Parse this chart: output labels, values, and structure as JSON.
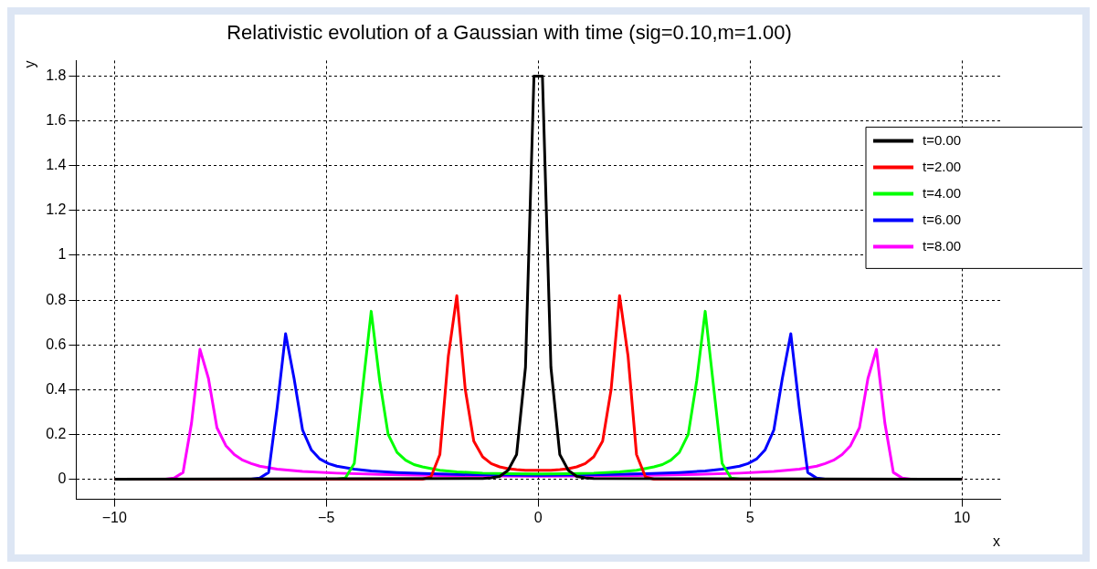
{
  "chart_data": {
    "type": "line",
    "title": "Relativistic evolution of a Gaussian with time (sig=0.10,m=1.00)",
    "xlabel": "x",
    "ylabel": "y",
    "xlim": [
      -10.9,
      10.9
    ],
    "xticks": [
      {
        "value": -10,
        "label": "−10"
      },
      {
        "value": -5,
        "label": "−5"
      },
      0,
      5,
      10
    ],
    "ylim": [
      -0.09,
      1.87
    ],
    "yticks": [
      0,
      0.2,
      0.4,
      0.6,
      0.8,
      1,
      1.2,
      1.4,
      1.6,
      1.8
    ],
    "grid": true,
    "legend": "top right",
    "marker": "none",
    "line_style": "solid",
    "series": [
      {
        "name": "t=0.00",
        "color": "#000000",
        "x": [
          -10,
          -1.31,
          -1.11,
          -0.91,
          -0.71,
          -0.51,
          -0.3,
          -0.1,
          0.1,
          0.3,
          0.51,
          0.71,
          0.91,
          1.11,
          1.31,
          10
        ],
        "values": [
          0,
          0.003,
          0.006,
          0.012,
          0.04,
          0.11,
          0.5,
          1.8,
          1.8,
          0.5,
          0.11,
          0.04,
          0.012,
          0.006,
          0.003,
          0
        ]
      },
      {
        "name": "t=2.00",
        "color": "#ff0000",
        "x": [
          -10,
          -2.73,
          -2.53,
          -2.32,
          -2.12,
          -1.92,
          -1.72,
          -1.52,
          -1.31,
          -1.11,
          -0.91,
          -0.71,
          -0.51,
          -0.3,
          -0.1,
          0.1,
          0.3,
          0.51,
          0.71,
          0.91,
          1.11,
          1.31,
          1.52,
          1.72,
          1.92,
          2.12,
          2.32,
          2.53,
          2.73,
          10
        ],
        "values": [
          0,
          0,
          0.01,
          0.11,
          0.55,
          0.82,
          0.4,
          0.17,
          0.1,
          0.07,
          0.055,
          0.047,
          0.043,
          0.04,
          0.04,
          0.04,
          0.04,
          0.043,
          0.047,
          0.055,
          0.07,
          0.1,
          0.17,
          0.4,
          0.82,
          0.55,
          0.11,
          0.01,
          0,
          0
        ]
      },
      {
        "name": "t=4.00",
        "color": "#00ff00",
        "x": [
          -10,
          -4.75,
          -4.55,
          -4.34,
          -4.14,
          -3.94,
          -3.74,
          -3.54,
          -3.33,
          -3.13,
          -2.93,
          -2.73,
          -2.32,
          -1.92,
          -1.31,
          -0.71,
          -0.1,
          0.1,
          0.71,
          1.31,
          1.92,
          2.32,
          2.73,
          2.93,
          3.13,
          3.33,
          3.54,
          3.74,
          3.94,
          4.14,
          4.34,
          4.55,
          4.75,
          10
        ],
        "values": [
          0,
          0,
          0.005,
          0.07,
          0.41,
          0.75,
          0.44,
          0.2,
          0.12,
          0.085,
          0.065,
          0.055,
          0.04,
          0.033,
          0.027,
          0.024,
          0.023,
          0.023,
          0.024,
          0.027,
          0.033,
          0.04,
          0.055,
          0.065,
          0.085,
          0.12,
          0.2,
          0.44,
          0.75,
          0.41,
          0.07,
          0.005,
          0,
          0
        ]
      },
      {
        "name": "t=6.00",
        "color": "#0000ff",
        "x": [
          -10,
          -6.77,
          -6.57,
          -6.36,
          -6.16,
          -5.96,
          -5.76,
          -5.56,
          -5.35,
          -5.15,
          -4.95,
          -4.75,
          -4.34,
          -3.94,
          -3.33,
          -2.53,
          -1.52,
          -0.1,
          0.1,
          1.52,
          2.53,
          3.33,
          3.94,
          4.34,
          4.75,
          4.95,
          5.15,
          5.35,
          5.56,
          5.76,
          5.96,
          6.16,
          6.36,
          6.57,
          6.77,
          10
        ],
        "values": [
          0,
          0,
          0.005,
          0.03,
          0.32,
          0.65,
          0.45,
          0.22,
          0.13,
          0.09,
          0.07,
          0.058,
          0.045,
          0.037,
          0.03,
          0.024,
          0.02,
          0.017,
          0.017,
          0.02,
          0.024,
          0.03,
          0.037,
          0.045,
          0.058,
          0.07,
          0.09,
          0.13,
          0.22,
          0.45,
          0.65,
          0.32,
          0.03,
          0.005,
          0,
          0
        ]
      },
      {
        "name": "t=8.00",
        "color": "#ff00ff",
        "x": [
          -10,
          -8.79,
          -8.59,
          -8.38,
          -8.18,
          -7.98,
          -7.78,
          -7.58,
          -7.37,
          -7.17,
          -6.97,
          -6.77,
          -6.57,
          -6.16,
          -5.56,
          -4.75,
          -3.74,
          -2.32,
          -0.1,
          0.1,
          2.32,
          3.74,
          4.75,
          5.56,
          6.16,
          6.57,
          6.77,
          6.97,
          7.17,
          7.37,
          7.58,
          7.78,
          7.98,
          8.18,
          8.38,
          8.59,
          8.79,
          10
        ],
        "values": [
          0,
          0,
          0.005,
          0.03,
          0.25,
          0.58,
          0.45,
          0.23,
          0.15,
          0.11,
          0.085,
          0.07,
          0.058,
          0.045,
          0.035,
          0.027,
          0.021,
          0.016,
          0.013,
          0.013,
          0.016,
          0.021,
          0.027,
          0.035,
          0.045,
          0.058,
          0.07,
          0.085,
          0.11,
          0.15,
          0.23,
          0.45,
          0.58,
          0.25,
          0.03,
          0.005,
          0,
          0
        ]
      }
    ]
  }
}
